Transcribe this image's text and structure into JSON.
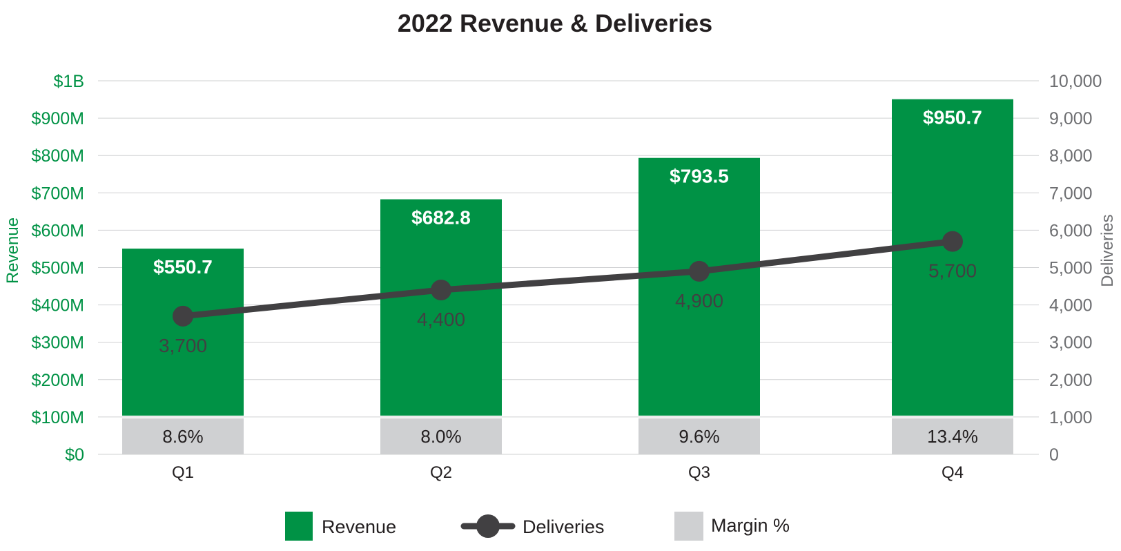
{
  "chart_data": {
    "type": "bar",
    "title": "2022 Revenue & Deliveries",
    "categories": [
      "Q1",
      "Q2",
      "Q3",
      "Q4"
    ],
    "series": [
      {
        "name": "Revenue",
        "kind": "bar",
        "axis": "left",
        "values": [
          550.7,
          682.8,
          793.5,
          950.7
        ],
        "labels": [
          "$550.7",
          "$682.8",
          "$793.5",
          "$950.7"
        ],
        "color": "#009245"
      },
      {
        "name": "Deliveries",
        "kind": "line",
        "axis": "right",
        "values": [
          3700,
          4400,
          4900,
          5700
        ],
        "labels": [
          "3,700",
          "4,400",
          "4,900",
          "5,700"
        ],
        "color": "#414042"
      },
      {
        "name": "Margin %",
        "kind": "bar",
        "axis": "left",
        "values": [
          8.6,
          8.0,
          9.6,
          13.4
        ],
        "labels": [
          "8.6%",
          "8.0%",
          "9.6%",
          "13.4%"
        ],
        "color": "#cfd0d2"
      }
    ],
    "y_left": {
      "label": "Revenue",
      "ylim": [
        0,
        1000
      ],
      "ticks": [
        0,
        100,
        200,
        300,
        400,
        500,
        600,
        700,
        800,
        900,
        1000
      ],
      "tick_labels": [
        "$0",
        "$100M",
        "$200M",
        "$300M",
        "$400M",
        "$500M",
        "$600M",
        "$700M",
        "$800M",
        "$900M",
        "$1B"
      ],
      "color": "#009245"
    },
    "y_right": {
      "label": "Deliveries",
      "ylim": [
        0,
        10000
      ],
      "ticks": [
        0,
        1000,
        2000,
        3000,
        4000,
        5000,
        6000,
        7000,
        8000,
        9000,
        10000
      ],
      "tick_labels": [
        "0",
        "1,000",
        "2,000",
        "3,000",
        "4,000",
        "5,000",
        "6,000",
        "7,000",
        "8,000",
        "9,000",
        "10,000"
      ],
      "color": "#6d6e71"
    },
    "grid": true,
    "legend": "bottom"
  }
}
